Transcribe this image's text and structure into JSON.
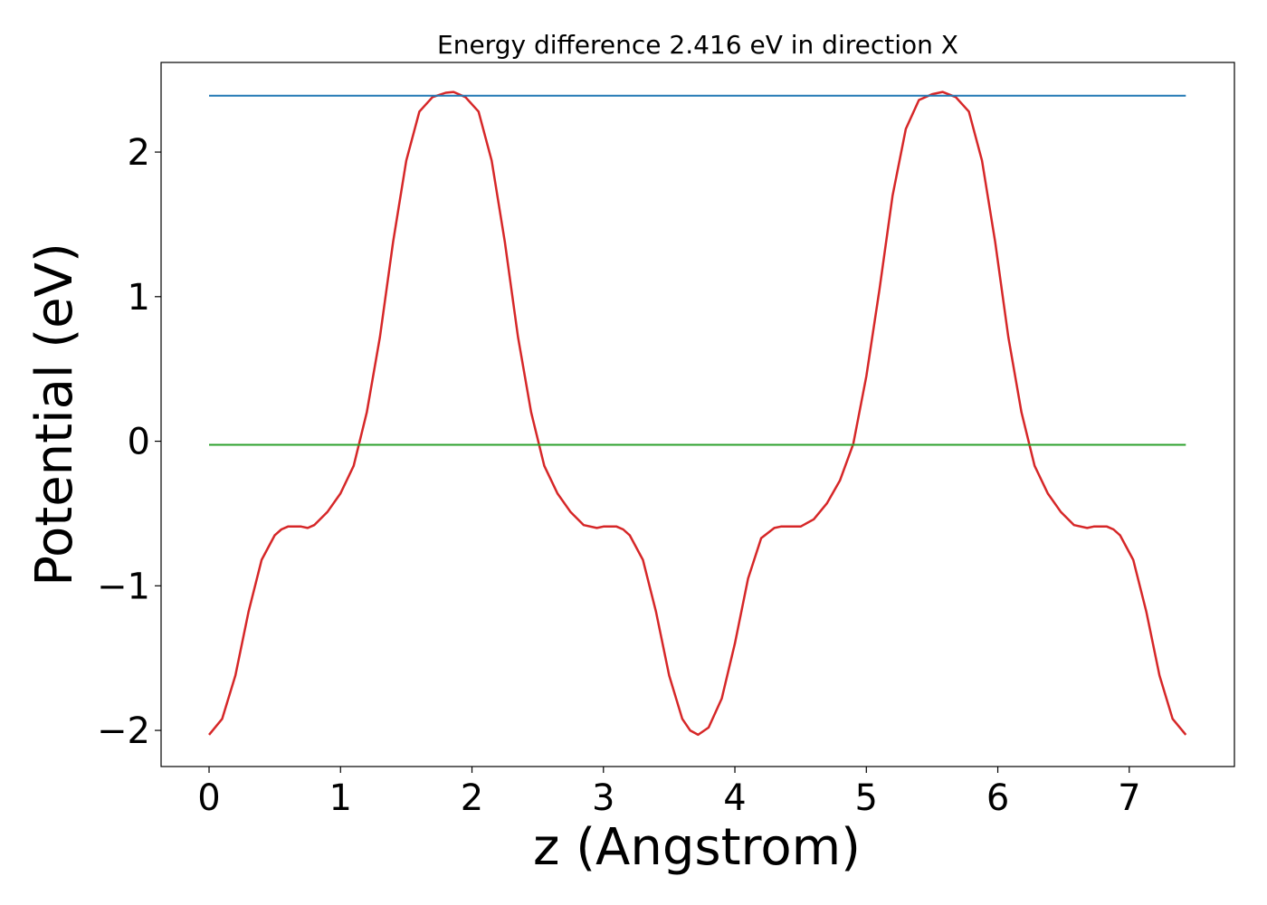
{
  "chart_data": {
    "type": "line",
    "title": "Energy difference 2.416 eV in direction X",
    "xlabel": "z (Angstrom)",
    "ylabel": "Potential (eV)",
    "xlim": [
      -0.365,
      7.8
    ],
    "ylim": [
      -2.25,
      2.62
    ],
    "xticks": [
      0,
      1,
      2,
      3,
      4,
      5,
      6,
      7
    ],
    "xtick_labels": [
      "0",
      "1",
      "2",
      "3",
      "4",
      "5",
      "6",
      "7"
    ],
    "yticks": [
      -2,
      -1,
      0,
      1,
      2
    ],
    "ytick_labels": [
      "−2",
      "−1",
      "0",
      "1",
      "2"
    ],
    "grid": false,
    "series": [
      {
        "color": "#d62728",
        "x": [
          0.0,
          0.1,
          0.2,
          0.3,
          0.4,
          0.5,
          0.55,
          0.6,
          0.65,
          0.7,
          0.75,
          0.8,
          0.9,
          1.0,
          1.1,
          1.2,
          1.3,
          1.4,
          1.5,
          1.6,
          1.7,
          1.8,
          1.86,
          1.95,
          2.05,
          2.15,
          2.25,
          2.35,
          2.45,
          2.55,
          2.65,
          2.75,
          2.85,
          2.95,
          3.0,
          3.05,
          3.1,
          3.15,
          3.2,
          3.3,
          3.4,
          3.5,
          3.6,
          3.66,
          3.72,
          3.8,
          3.9,
          4.0,
          4.1,
          4.2,
          4.3,
          4.35,
          4.4,
          4.45,
          4.5,
          4.6,
          4.7,
          4.8,
          4.9,
          5.0,
          5.1,
          5.2,
          5.3,
          5.4,
          5.5,
          5.58,
          5.68,
          5.78,
          5.88,
          5.98,
          6.08,
          6.18,
          6.28,
          6.38,
          6.48,
          6.58,
          6.68,
          6.73,
          6.78,
          6.83,
          6.88,
          6.93,
          7.03,
          7.13,
          7.23,
          7.33,
          7.43
        ],
        "y": [
          -2.03,
          -1.92,
          -1.62,
          -1.18,
          -0.82,
          -0.65,
          -0.61,
          -0.59,
          -0.59,
          -0.59,
          -0.6,
          -0.58,
          -0.49,
          -0.36,
          -0.17,
          0.2,
          0.72,
          1.38,
          1.94,
          2.28,
          2.38,
          2.41,
          2.416,
          2.38,
          2.28,
          1.94,
          1.38,
          0.72,
          0.2,
          -0.17,
          -0.36,
          -0.49,
          -0.58,
          -0.6,
          -0.59,
          -0.59,
          -0.59,
          -0.61,
          -0.65,
          -0.82,
          -1.18,
          -1.62,
          -1.92,
          -2.0,
          -2.03,
          -1.98,
          -1.78,
          -1.4,
          -0.95,
          -0.67,
          -0.6,
          -0.59,
          -0.59,
          -0.59,
          -0.59,
          -0.54,
          -0.43,
          -0.27,
          -0.02,
          0.45,
          1.05,
          1.7,
          2.16,
          2.36,
          2.4,
          2.416,
          2.38,
          2.28,
          1.94,
          1.38,
          0.72,
          0.2,
          -0.17,
          -0.36,
          -0.49,
          -0.58,
          -0.6,
          -0.59,
          -0.59,
          -0.59,
          -0.61,
          -0.65,
          -0.82,
          -1.18,
          -1.62,
          -1.92,
          -2.03
        ]
      },
      {
        "color": "#1f77b4",
        "x": [
          0.0,
          7.43
        ],
        "y": [
          2.39,
          2.39
        ]
      },
      {
        "color": "#2ca02c",
        "x": [
          0.0,
          7.43
        ],
        "y": [
          -0.025,
          -0.025
        ]
      }
    ]
  }
}
